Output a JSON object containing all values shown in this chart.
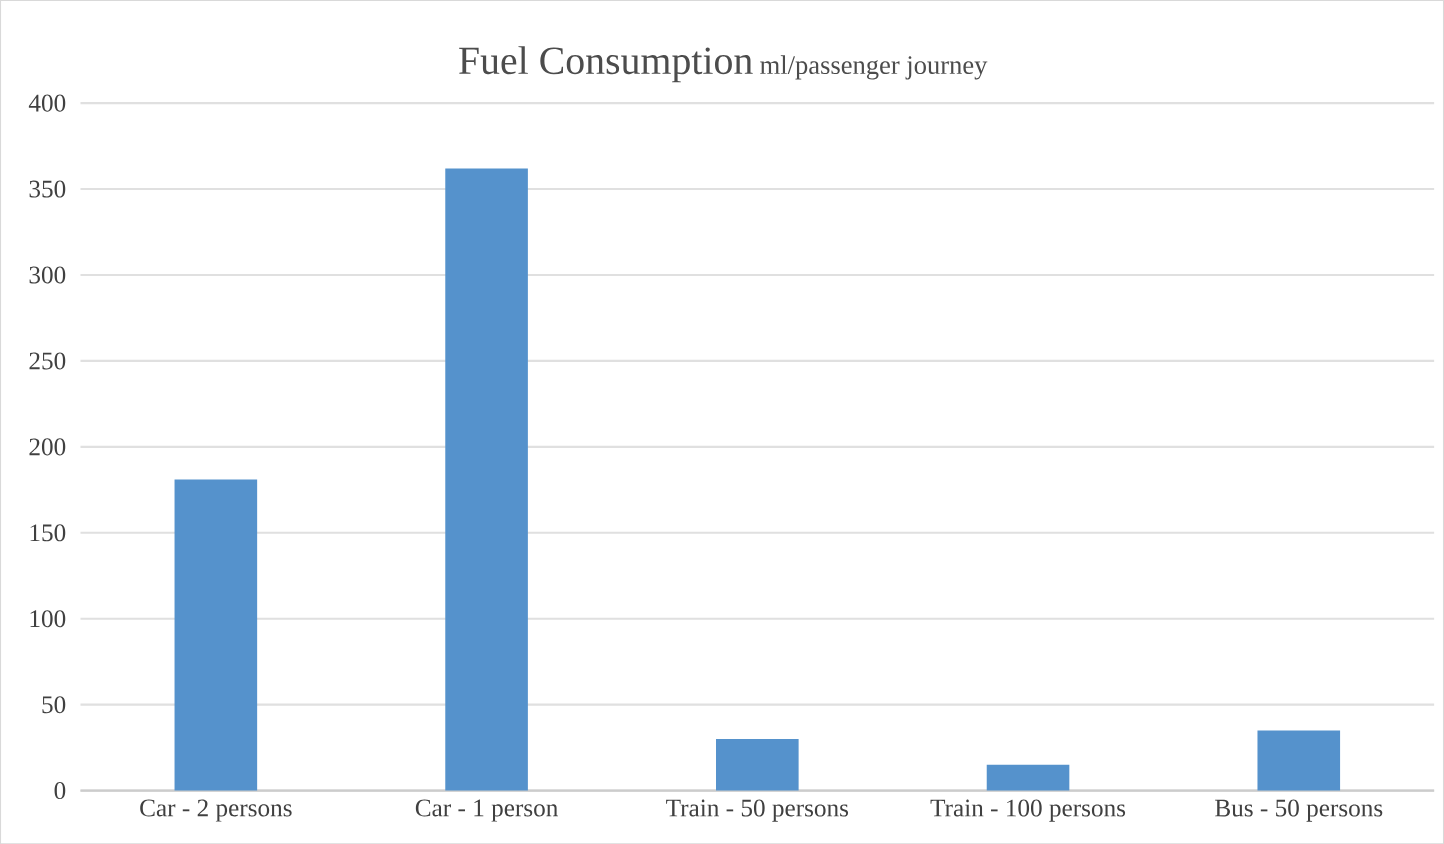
{
  "chart_data": {
    "type": "bar",
    "title": "Fuel Consumption",
    "subtitle": "ml/passenger journey",
    "categories": [
      "Car - 2 persons",
      "Car - 1 person",
      "Train - 50 persons",
      "Train - 100 persons",
      "Bus - 50 persons"
    ],
    "values": [
      181,
      362,
      30,
      15,
      35
    ],
    "color": "#5592cc",
    "ylim": [
      0,
      400
    ],
    "yticks": [
      0,
      50,
      100,
      150,
      200,
      250,
      300,
      350,
      400
    ],
    "grid": "y"
  }
}
